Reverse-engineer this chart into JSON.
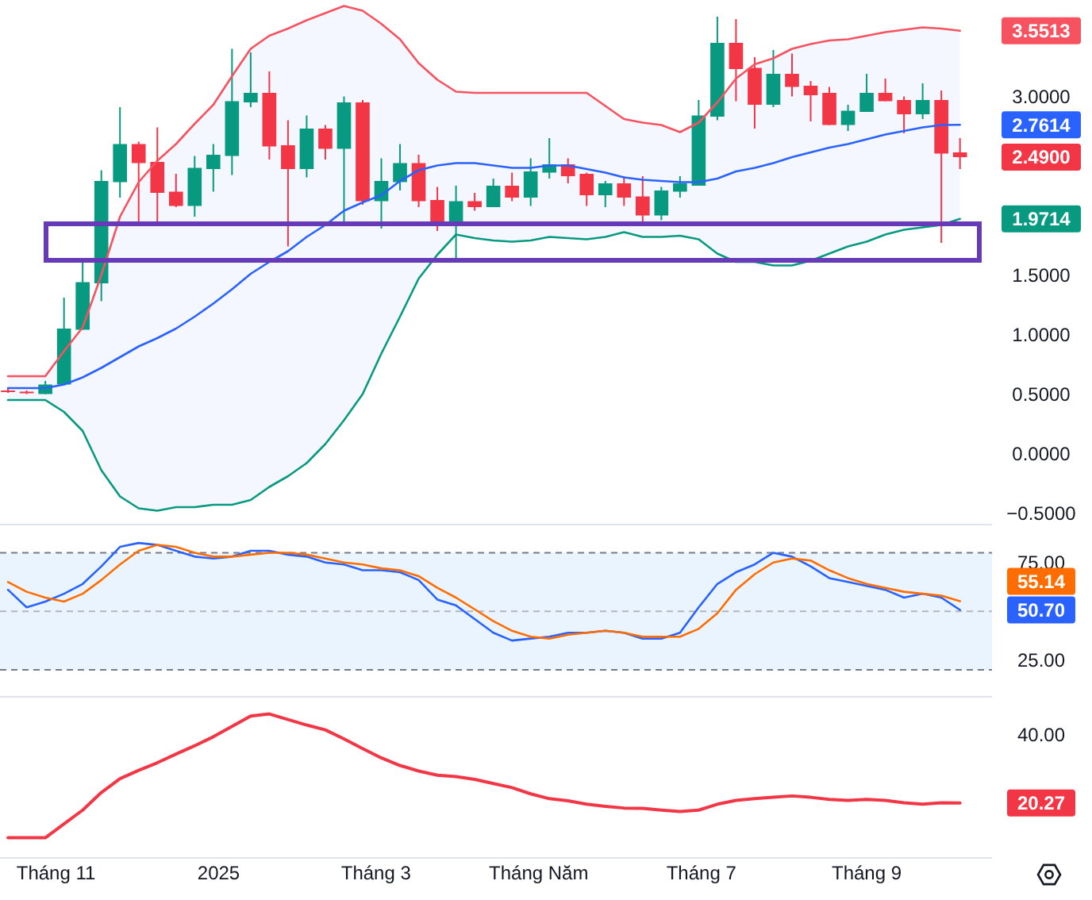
{
  "chart_data": [
    {
      "type": "candlestick",
      "x": [
        "2024-10-14",
        "2024-10-21",
        "2024-10-28",
        "2024-11-04",
        "2024-11-11",
        "2024-11-18",
        "2024-11-25",
        "2024-12-02",
        "2024-12-09",
        "2024-12-16",
        "2024-12-23",
        "2024-12-30",
        "2025-01-06",
        "2025-01-13",
        "2025-01-20",
        "2025-01-27",
        "2025-02-03",
        "2025-02-10",
        "2025-02-17",
        "2025-02-24",
        "2025-03-03",
        "2025-03-10",
        "2025-03-17",
        "2025-03-24",
        "2025-03-31",
        "2025-04-07",
        "2025-04-14",
        "2025-04-21",
        "2025-04-28",
        "2025-05-05",
        "2025-05-12",
        "2025-05-19",
        "2025-05-26",
        "2025-06-02",
        "2025-06-09",
        "2025-06-16",
        "2025-06-23",
        "2025-06-30",
        "2025-07-07",
        "2025-07-14",
        "2025-07-21",
        "2025-07-28",
        "2025-08-04",
        "2025-08-11",
        "2025-08-18",
        "2025-08-25",
        "2025-09-01",
        "2025-09-08",
        "2025-09-15",
        "2025-09-22",
        "2025-09-29",
        "2025-10-06"
      ],
      "xlim": [
        "2024-10-11",
        "2025-10-18"
      ],
      "ylim": [
        -0.59,
        3.81
      ],
      "yticks": [
        {
          "value": -0.5,
          "label": "−0.5000"
        },
        {
          "value": 0,
          "label": "0.0000"
        },
        {
          "value": 0.5,
          "label": "0.5000"
        },
        {
          "value": 1,
          "label": "1.0000"
        },
        {
          "value": 1.5,
          "label": "1.5000"
        },
        {
          "value": 1.9714,
          "label": "1.9714"
        },
        {
          "value": 2.49,
          "label": "2.4900"
        },
        {
          "value": 2.7614,
          "label": "2.7614"
        },
        {
          "value": 3,
          "label": "3.0000"
        },
        {
          "value": 3.5513,
          "label": "3.5513"
        }
      ],
      "tick_labels": "y",
      "series": [
        {
          "ohlc": [
            [
              0.53,
              0.55,
              0.51,
              0.52
            ],
            [
              0.52,
              0.53,
              0.5,
              0.51
            ],
            [
              0.5,
              0.61,
              0.5,
              0.58
            ],
            [
              0.58,
              1.31,
              0.58,
              1.05
            ],
            [
              1.04,
              1.64,
              1.04,
              1.44
            ],
            [
              1.43,
              2.38,
              1.28,
              2.29
            ],
            [
              2.28,
              2.91,
              2.15,
              2.6
            ],
            [
              2.6,
              2.62,
              1.91,
              2.44
            ],
            [
              2.45,
              2.74,
              1.95,
              2.19
            ],
            [
              2.2,
              2.35,
              2.07,
              2.08
            ],
            [
              2.08,
              2.5,
              1.99,
              2.4
            ],
            [
              2.39,
              2.6,
              2.2,
              2.51
            ],
            [
              2.5,
              3.4,
              2.34,
              2.96
            ],
            [
              2.95,
              3.37,
              2.91,
              3.03
            ],
            [
              3.03,
              3.21,
              2.47,
              2.58
            ],
            [
              2.59,
              2.8,
              1.74,
              2.39
            ],
            [
              2.39,
              2.84,
              2.32,
              2.73
            ],
            [
              2.73,
              2.76,
              2.47,
              2.56
            ],
            [
              2.56,
              3.0,
              1.95,
              2.95
            ],
            [
              2.95,
              2.97,
              2.09,
              2.12
            ],
            [
              2.12,
              2.48,
              1.89,
              2.29
            ],
            [
              2.28,
              2.6,
              2.21,
              2.44
            ],
            [
              2.44,
              2.51,
              2.07,
              2.12
            ],
            [
              2.13,
              2.24,
              1.87,
              1.91
            ],
            [
              1.91,
              2.25,
              1.62,
              2.12
            ],
            [
              2.12,
              2.19,
              2.04,
              2.07
            ],
            [
              2.07,
              2.31,
              2.07,
              2.25
            ],
            [
              2.25,
              2.36,
              2.12,
              2.15
            ],
            [
              2.15,
              2.48,
              2.08,
              2.37
            ],
            [
              2.36,
              2.65,
              2.31,
              2.43
            ],
            [
              2.43,
              2.48,
              2.27,
              2.33
            ],
            [
              2.35,
              2.36,
              2.08,
              2.17
            ],
            [
              2.17,
              2.29,
              2.07,
              2.27
            ],
            [
              2.27,
              2.33,
              2.08,
              2.15
            ],
            [
              2.16,
              2.33,
              1.92,
              2.0
            ],
            [
              2.0,
              2.24,
              1.96,
              2.21
            ],
            [
              2.2,
              2.33,
              2.15,
              2.27
            ],
            [
              2.25,
              2.97,
              2.25,
              2.84
            ],
            [
              2.83,
              3.67,
              2.8,
              3.45
            ],
            [
              3.45,
              3.65,
              2.96,
              3.23
            ],
            [
              3.24,
              3.33,
              2.73,
              2.93
            ],
            [
              2.93,
              3.39,
              2.91,
              3.19
            ],
            [
              3.19,
              3.36,
              3.0,
              3.08
            ],
            [
              3.09,
              3.13,
              2.79,
              3.01
            ],
            [
              3.03,
              3.08,
              2.76,
              2.76
            ],
            [
              2.76,
              2.93,
              2.71,
              2.88
            ],
            [
              2.87,
              3.19,
              2.87,
              3.03
            ],
            [
              3.03,
              3.15,
              2.96,
              2.96
            ],
            [
              2.97,
              3.0,
              2.69,
              2.85
            ],
            [
              2.85,
              3.11,
              2.81,
              2.97
            ],
            [
              2.97,
              3.05,
              1.77,
              2.52
            ],
            [
              2.53,
              2.65,
              2.39,
              2.49
            ]
          ],
          "colors": [
            "#f23645",
            "#f23645",
            "#089981",
            "#089981",
            "#089981",
            "#089981",
            "#089981",
            "#f23645",
            "#f23645",
            "#f23645",
            "#089981",
            "#089981",
            "#089981",
            "#089981",
            "#f23645",
            "#f23645",
            "#089981",
            "#f23645",
            "#089981",
            "#f23645",
            "#089981",
            "#089981",
            "#f23645",
            "#f23645",
            "#089981",
            "#f23645",
            "#089981",
            "#f23645",
            "#089981",
            "#089981",
            "#f23645",
            "#f23645",
            "#089981",
            "#f23645",
            "#f23645",
            "#089981",
            "#089981",
            "#089981",
            "#089981",
            "#f23645",
            "#f23645",
            "#089981",
            "#f23645",
            "#f23645",
            "#f23645",
            "#089981",
            "#089981",
            "#f23645",
            "#f23645",
            "#089981",
            "#f23645",
            "#f23645"
          ]
        },
        {
          "type": "line",
          "color": "#f7525f",
          "values": [
            0.65,
            0.65,
            0.65,
            0.86,
            1.06,
            1.5,
            1.99,
            2.28,
            2.46,
            2.6,
            2.77,
            2.93,
            3.17,
            3.4,
            3.51,
            3.57,
            3.64,
            3.7,
            3.76,
            3.72,
            3.61,
            3.48,
            3.28,
            3.14,
            3.04,
            3.03,
            3.03,
            3.03,
            3.03,
            3.03,
            3.03,
            3.03,
            2.92,
            2.81,
            2.78,
            2.76,
            2.7,
            2.78,
            2.95,
            3.15,
            3.27,
            3.32,
            3.4,
            3.44,
            3.47,
            3.48,
            3.51,
            3.54,
            3.56,
            3.58,
            3.57,
            3.5513
          ]
        },
        {
          "type": "line",
          "color": "#2962ff",
          "values": [
            0.55,
            0.55,
            0.55,
            0.58,
            0.64,
            0.72,
            0.81,
            0.9,
            0.97,
            1.05,
            1.15,
            1.26,
            1.38,
            1.51,
            1.61,
            1.7,
            1.82,
            1.92,
            2.04,
            2.11,
            2.17,
            2.29,
            2.38,
            2.42,
            2.44,
            2.44,
            2.42,
            2.4,
            2.4,
            2.42,
            2.42,
            2.39,
            2.36,
            2.32,
            2.3,
            2.29,
            2.28,
            2.28,
            2.31,
            2.37,
            2.4,
            2.44,
            2.49,
            2.53,
            2.57,
            2.6,
            2.64,
            2.68,
            2.71,
            2.74,
            2.76,
            2.7614
          ],
          "upper": [
            0.65,
            0.65,
            0.65,
            0.86,
            1.06,
            1.5,
            1.99,
            2.28,
            2.46,
            2.6,
            2.77,
            2.93,
            3.17,
            3.4,
            3.51,
            3.57,
            3.64,
            3.7,
            3.76,
            3.72,
            3.61,
            3.48,
            3.28,
            3.14,
            3.04,
            3.03,
            3.03,
            3.03,
            3.03,
            3.03,
            3.03,
            3.03,
            2.92,
            2.81,
            2.78,
            2.76,
            2.7,
            2.78,
            2.95,
            3.15,
            3.27,
            3.32,
            3.4,
            3.44,
            3.47,
            3.48,
            3.51,
            3.54,
            3.56,
            3.58,
            3.57,
            3.5513
          ],
          "lower": [
            0.45,
            0.45,
            0.45,
            0.35,
            0.19,
            -0.14,
            -0.36,
            -0.46,
            -0.48,
            -0.45,
            -0.45,
            -0.43,
            -0.43,
            -0.39,
            -0.28,
            -0.19,
            -0.08,
            0.08,
            0.28,
            0.5,
            0.84,
            1.15,
            1.47,
            1.67,
            1.84,
            1.81,
            1.79,
            1.78,
            1.79,
            1.82,
            1.81,
            1.8,
            1.82,
            1.86,
            1.82,
            1.82,
            1.83,
            1.8,
            1.68,
            1.61,
            1.61,
            1.58,
            1.58,
            1.62,
            1.68,
            1.74,
            1.78,
            1.84,
            1.88,
            1.9,
            1.92,
            1.9714
          ]
        },
        {
          "type": "line",
          "color": "#089981",
          "values": [
            0.45,
            0.45,
            0.45,
            0.35,
            0.19,
            -0.14,
            -0.36,
            -0.46,
            -0.48,
            -0.45,
            -0.45,
            -0.43,
            -0.43,
            -0.39,
            -0.28,
            -0.19,
            -0.08,
            0.08,
            0.28,
            0.5,
            0.84,
            1.15,
            1.47,
            1.67,
            1.84,
            1.81,
            1.79,
            1.78,
            1.79,
            1.82,
            1.81,
            1.8,
            1.82,
            1.86,
            1.82,
            1.82,
            1.83,
            1.8,
            1.68,
            1.61,
            1.61,
            1.58,
            1.58,
            1.62,
            1.68,
            1.74,
            1.78,
            1.84,
            1.88,
            1.9,
            1.92,
            1.9714
          ]
        }
      ]
    },
    {
      "type": "line",
      "x": [
        "2024-10-14",
        "2024-10-21",
        "2024-10-28",
        "2024-11-04",
        "2024-11-11",
        "2024-11-18",
        "2024-11-25",
        "2024-12-02",
        "2024-12-09",
        "2024-12-16",
        "2024-12-23",
        "2024-12-30",
        "2025-01-06",
        "2025-01-13",
        "2025-01-20",
        "2025-01-27",
        "2025-02-03",
        "2025-02-10",
        "2025-02-17",
        "2025-02-24",
        "2025-03-03",
        "2025-03-10",
        "2025-03-17",
        "2025-03-24",
        "2025-03-31",
        "2025-04-07",
        "2025-04-14",
        "2025-04-21",
        "2025-04-28",
        "2025-05-05",
        "2025-05-12",
        "2025-05-19",
        "2025-05-26",
        "2025-06-02",
        "2025-06-09",
        "2025-06-16",
        "2025-06-23",
        "2025-06-30",
        "2025-07-07",
        "2025-07-14",
        "2025-07-21",
        "2025-07-28",
        "2025-08-04",
        "2025-08-11",
        "2025-08-18",
        "2025-08-25",
        "2025-09-01",
        "2025-09-08",
        "2025-09-15",
        "2025-09-22",
        "2025-09-29",
        "2025-10-06"
      ],
      "xlim": [
        "2024-10-11",
        "2025-10-18"
      ],
      "ylim": [
        7,
        94
      ],
      "yticks": [
        {
          "value": 25,
          "label": "25.00"
        },
        {
          "value": 50.7,
          "label": "50.70"
        },
        {
          "value": 75,
          "label": "75.00"
        }
      ],
      "annotations": [
        "55.14"
      ],
      "tick_labels": "y",
      "bands": [
        {
          "axis": "y",
          "from": 20,
          "to": 80,
          "color": "#e9f4fe"
        }
      ],
      "ref_lines": [
        {
          "axis": "y",
          "value": 80,
          "color": "#787b86",
          "line_style": "dashed"
        },
        {
          "axis": "y",
          "value": 50,
          "color": "#b2b5be",
          "line_style": "dashed"
        },
        {
          "axis": "y",
          "value": 20,
          "color": "#787b86",
          "line_style": "dashed"
        }
      ],
      "series": [
        {
          "color": "#2962ff",
          "values": [
            61,
            52,
            55,
            59,
            64,
            73,
            83,
            85,
            84,
            81,
            78,
            77,
            78,
            81,
            81,
            79,
            78,
            75,
            74,
            71,
            71,
            70,
            66,
            56,
            53,
            46,
            39,
            35,
            36,
            37,
            39,
            39,
            40,
            39,
            36,
            36,
            39,
            52,
            64,
            70,
            74,
            80,
            78,
            73,
            67,
            65,
            63,
            61,
            57,
            59,
            57,
            50.7
          ]
        },
        {
          "color": "#ff6d00",
          "values": [
            65,
            60,
            57,
            55,
            59,
            66,
            74,
            81,
            84,
            83,
            80,
            78,
            78,
            79,
            80,
            80,
            79,
            77,
            75,
            74,
            72,
            71,
            68,
            62,
            57,
            51,
            45,
            40,
            37,
            36,
            38,
            39,
            40,
            39,
            37,
            37,
            37,
            41,
            49,
            61,
            69,
            75,
            77,
            76,
            71,
            67,
            64,
            62,
            60,
            59,
            58,
            55.14
          ]
        }
      ]
    },
    {
      "type": "line",
      "x": [
        "2024-10-14",
        "2024-10-21",
        "2024-10-28",
        "2024-11-04",
        "2024-11-11",
        "2024-11-18",
        "2024-11-25",
        "2024-12-02",
        "2024-12-09",
        "2024-12-16",
        "2024-12-23",
        "2024-12-30",
        "2025-01-06",
        "2025-01-13",
        "2025-01-20",
        "2025-01-27",
        "2025-02-03",
        "2025-02-10",
        "2025-02-17",
        "2025-02-24",
        "2025-03-03",
        "2025-03-10",
        "2025-03-17",
        "2025-03-24",
        "2025-03-31",
        "2025-04-07",
        "2025-04-14",
        "2025-04-21",
        "2025-04-28",
        "2025-05-05",
        "2025-05-12",
        "2025-05-19",
        "2025-05-26",
        "2025-06-02",
        "2025-06-09",
        "2025-06-16",
        "2025-06-23",
        "2025-06-30",
        "2025-07-07",
        "2025-07-14",
        "2025-07-21",
        "2025-07-28",
        "2025-08-04",
        "2025-08-11",
        "2025-08-18",
        "2025-08-25",
        "2025-09-01",
        "2025-09-08",
        "2025-09-15",
        "2025-09-22",
        "2025-09-29",
        "2025-10-06"
      ],
      "xlim": [
        "2024-10-11",
        "2025-10-18"
      ],
      "ylim": [
        4.6,
        50.5
      ],
      "xticks": [
        {
          "value": "2024-11-01",
          "label": "Tháng 11"
        },
        {
          "value": "2025-01-01",
          "label": "2025"
        },
        {
          "value": "2025-03-01",
          "label": "Tháng 3"
        },
        {
          "value": "2025-05-01",
          "label": "Tháng Năm"
        },
        {
          "value": "2025-07-01",
          "label": "Tháng 7"
        },
        {
          "value": "2025-09-01",
          "label": "Tháng 9"
        }
      ],
      "yticks": [
        {
          "value": 20.27,
          "label": "20.27"
        },
        {
          "value": 40,
          "label": "40.00"
        }
      ],
      "series": [
        {
          "color": "#f23645",
          "values": [
            10.2,
            10.2,
            10.2,
            14.2,
            18.2,
            23.3,
            27.3,
            29.7,
            31.9,
            34.4,
            36.8,
            39.4,
            42.4,
            45.4,
            46.0,
            44.4,
            42.8,
            41.4,
            38.8,
            36.0,
            33.3,
            31.1,
            29.5,
            28.3,
            27.9,
            27.1,
            25.9,
            24.7,
            22.9,
            21.5,
            20.9,
            19.9,
            19.3,
            18.8,
            18.7,
            18.2,
            17.8,
            18.2,
            19.9,
            21.0,
            21.5,
            21.9,
            22.3,
            21.9,
            21.3,
            21.0,
            21.3,
            21.0,
            20.3,
            19.9,
            20.3,
            20.27
          ]
        }
      ]
    }
  ]
}
